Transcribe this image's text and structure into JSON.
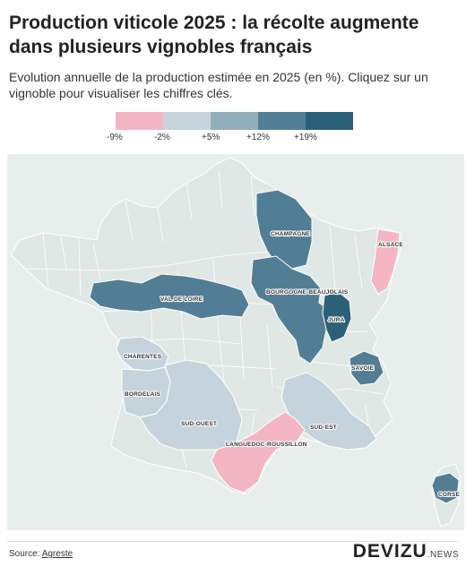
{
  "header": {
    "title": "Production viticole 2025 : la récolte augmente dans plusieurs vignobles français",
    "subtitle": "Evolution annuelle de la production estimée en 2025 (en %). Cliquez sur un vignoble pour visualiser les chiffres clés."
  },
  "legend": {
    "swatches": [
      "#f4b6c4",
      "#c5d3dc",
      "#91aebd",
      "#527e95",
      "#2c6079"
    ],
    "labels": [
      "-9%",
      "-2%",
      "+5%",
      "+12%",
      "+19%"
    ]
  },
  "colors": {
    "background": "#e8eeeb",
    "no_data_department": "#dfe8e4",
    "borders": "#ffffff"
  },
  "map": {
    "regions": [
      {
        "id": "champagne",
        "label": "CHAMPAGNE",
        "color": "#527e95"
      },
      {
        "id": "alsace",
        "label": "ALSACE",
        "color": "#f4b6c4"
      },
      {
        "id": "val-de-loire",
        "label": "VAL DE LOIRE",
        "color": "#527e95"
      },
      {
        "id": "bourgogne-beaujolais",
        "label": "BOURGOGNE-BEAUJOLAIS",
        "color": "#527e95"
      },
      {
        "id": "jura",
        "label": "JURA",
        "color": "#2c6079"
      },
      {
        "id": "savoie",
        "label": "SAVOIE",
        "color": "#527e95"
      },
      {
        "id": "charentes",
        "label": "CHARENTES",
        "color": "#c5d3dc"
      },
      {
        "id": "bordelais",
        "label": "BORDELAIS",
        "color": "#c5d3dc"
      },
      {
        "id": "sud-ouest",
        "label": "SUD-OUEST",
        "color": "#c5d3dc"
      },
      {
        "id": "sud-est",
        "label": "SUD-EST",
        "color": "#c5d3dc"
      },
      {
        "id": "languedoc-roussillon",
        "label": "LANGUEDOC-ROUSSILLON",
        "color": "#f4b6c4"
      },
      {
        "id": "corse",
        "label": "CORSE",
        "color": "#527e95"
      }
    ]
  },
  "footer": {
    "source_prefix": "Source: ",
    "source_link": "Agreste",
    "brand": "DEVIZU",
    "brand_suffix": ".NEWS"
  }
}
